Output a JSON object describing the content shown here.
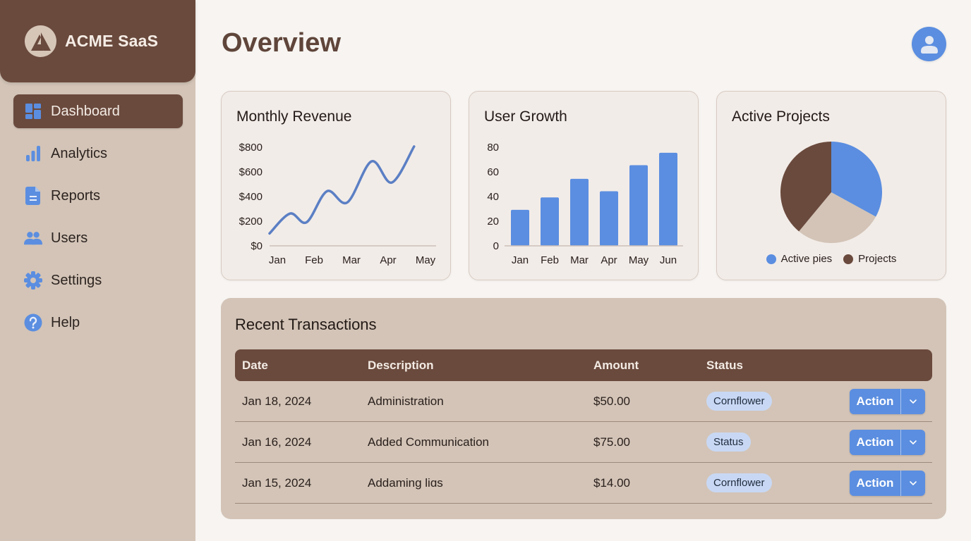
{
  "brand": {
    "name": "ACME SaaS",
    "logo_icon": "mountain-a-icon"
  },
  "sidebar": {
    "items": [
      {
        "label": "Dashboard",
        "icon": "dashboard-icon",
        "active": true
      },
      {
        "label": "Analytics",
        "icon": "bar-chart-icon",
        "active": false
      },
      {
        "label": "Reports",
        "icon": "document-icon",
        "active": false
      },
      {
        "label": "Users",
        "icon": "users-icon",
        "active": false
      },
      {
        "label": "Settings",
        "icon": "gear-icon",
        "active": false
      },
      {
        "label": "Help",
        "icon": "help-icon",
        "active": false
      }
    ]
  },
  "header": {
    "title": "Overview",
    "avatar_icon": "user-avatar-icon"
  },
  "colors": {
    "brand_brown": "#6a4a3d",
    "accent_blue": "#5b8ee0",
    "sidebar_bg": "#d3c4b7",
    "page_bg": "#f7f4f1",
    "card_bg": "#f2ece8",
    "beige_slice": "#d3c4b7",
    "badge_bg": "#c8d8f4"
  },
  "cards": {
    "revenue": {
      "title": "Monthly Revenue"
    },
    "users": {
      "title": "User Growth"
    },
    "projects": {
      "title": "Active Projects",
      "legend": [
        "Active pies",
        "Projects"
      ]
    }
  },
  "chart_data": [
    {
      "type": "line",
      "title": "Monthly Revenue",
      "categories": [
        "Jan",
        "Feb",
        "Mar",
        "Apr",
        "May"
      ],
      "y_ticks": [
        "$0",
        "$200",
        "$400",
        "$600",
        "$800"
      ],
      "ylim": [
        0,
        800
      ],
      "series": [
        {
          "name": "Revenue",
          "color": "#5b7fc4",
          "x": [
            0,
            0.55,
            1.0,
            1.55,
            2.1,
            2.75,
            3.3,
            3.9
          ],
          "values": [
            100,
            260,
            190,
            440,
            350,
            680,
            510,
            800
          ]
        }
      ],
      "grid": false,
      "xlabel": "",
      "ylabel": ""
    },
    {
      "type": "bar",
      "title": "User Growth",
      "categories": [
        "Jan",
        "Feb",
        "Mar",
        "Apr",
        "May",
        "Jun"
      ],
      "values": [
        29,
        39,
        54,
        44,
        65,
        75
      ],
      "y_ticks": [
        "0",
        "20",
        "40",
        "60",
        "80"
      ],
      "ylim": [
        0,
        80
      ],
      "color": "#5b8ee0",
      "grid": false,
      "xlabel": "",
      "ylabel": ""
    },
    {
      "type": "pie",
      "title": "Active Projects",
      "slices": [
        {
          "label": "Active pies",
          "value": 33,
          "color": "#5b8ee0"
        },
        {
          "label": "",
          "value": 28,
          "color": "#d3c4b7"
        },
        {
          "label": "Projects",
          "value": 39,
          "color": "#6a4a3d"
        }
      ],
      "legend": [
        "Active pies",
        "Projects"
      ],
      "legend_position": "bottom"
    }
  ],
  "transactions": {
    "title": "Recent Transactions",
    "columns": [
      "Date",
      "Description",
      "Amount",
      "Status",
      ""
    ],
    "rows": [
      {
        "date": "Jan 18, 2024",
        "description": "Administration",
        "amount": "$50.00",
        "status": "Cornflower",
        "action": "Action"
      },
      {
        "date": "Jan 16, 2024",
        "description": "Added Communication",
        "amount": "$75.00",
        "status": "Status",
        "action": "Action"
      },
      {
        "date": "Jan 15, 2024",
        "description": "Addaming liɑs",
        "amount": "$14.00",
        "status": "Cornflower",
        "action": "Action"
      }
    ]
  }
}
